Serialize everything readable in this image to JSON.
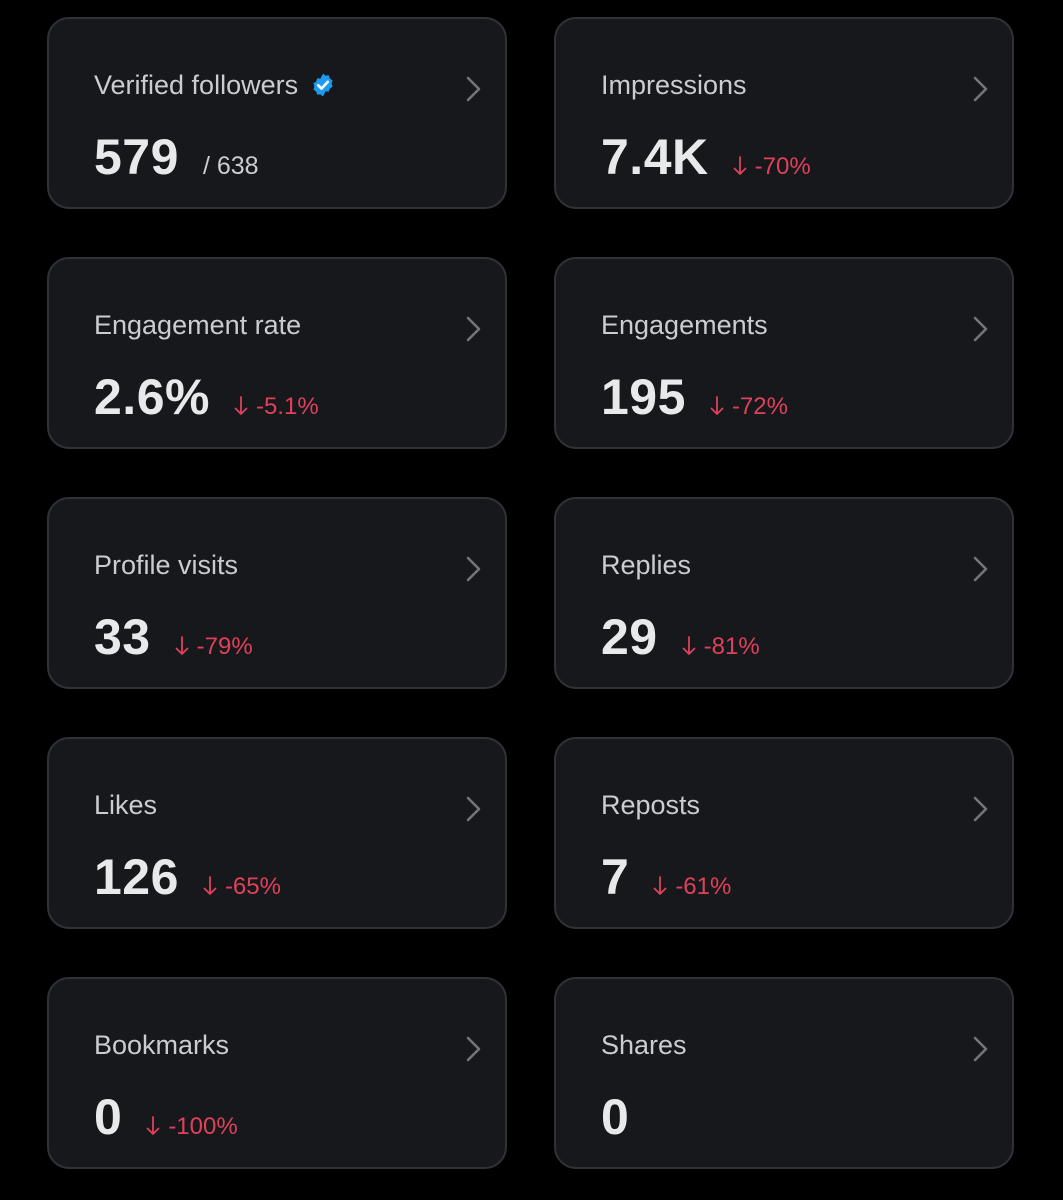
{
  "colors": {
    "background": "#000000",
    "card": "#16181c",
    "card_border": "#2f3336",
    "title_text": "#c9cdd1",
    "value_text": "#e7e9ea",
    "negative": "#e0415a",
    "verified_blue": "#1d9bf0"
  },
  "cards": [
    {
      "title": "Verified followers",
      "value": "579",
      "total": "/ 638",
      "icons": [
        "verified-badge-icon",
        "chevron-right-icon"
      ]
    },
    {
      "title": "Impressions",
      "value": "7.4K",
      "delta": "-70%",
      "icons": [
        "arrow-down-icon",
        "chevron-right-icon"
      ]
    },
    {
      "title": "Engagement rate",
      "value": "2.6%",
      "delta": "-5.1%",
      "icons": [
        "arrow-down-icon",
        "chevron-right-icon"
      ]
    },
    {
      "title": "Engagements",
      "value": "195",
      "delta": "-72%",
      "icons": [
        "arrow-down-icon",
        "chevron-right-icon"
      ]
    },
    {
      "title": "Profile visits",
      "value": "33",
      "delta": "-79%",
      "icons": [
        "arrow-down-icon",
        "chevron-right-icon"
      ]
    },
    {
      "title": "Replies",
      "value": "29",
      "delta": "-81%",
      "icons": [
        "arrow-down-icon",
        "chevron-right-icon"
      ]
    },
    {
      "title": "Likes",
      "value": "126",
      "delta": "-65%",
      "icons": [
        "arrow-down-icon",
        "chevron-right-icon"
      ]
    },
    {
      "title": "Reposts",
      "value": "7",
      "delta": "-61%",
      "icons": [
        "arrow-down-icon",
        "chevron-right-icon"
      ]
    },
    {
      "title": "Bookmarks",
      "value": "0",
      "delta": "-100%",
      "icons": [
        "arrow-down-icon",
        "chevron-right-icon"
      ]
    },
    {
      "title": "Shares",
      "value": "0",
      "icons": [
        "chevron-right-icon"
      ]
    }
  ]
}
